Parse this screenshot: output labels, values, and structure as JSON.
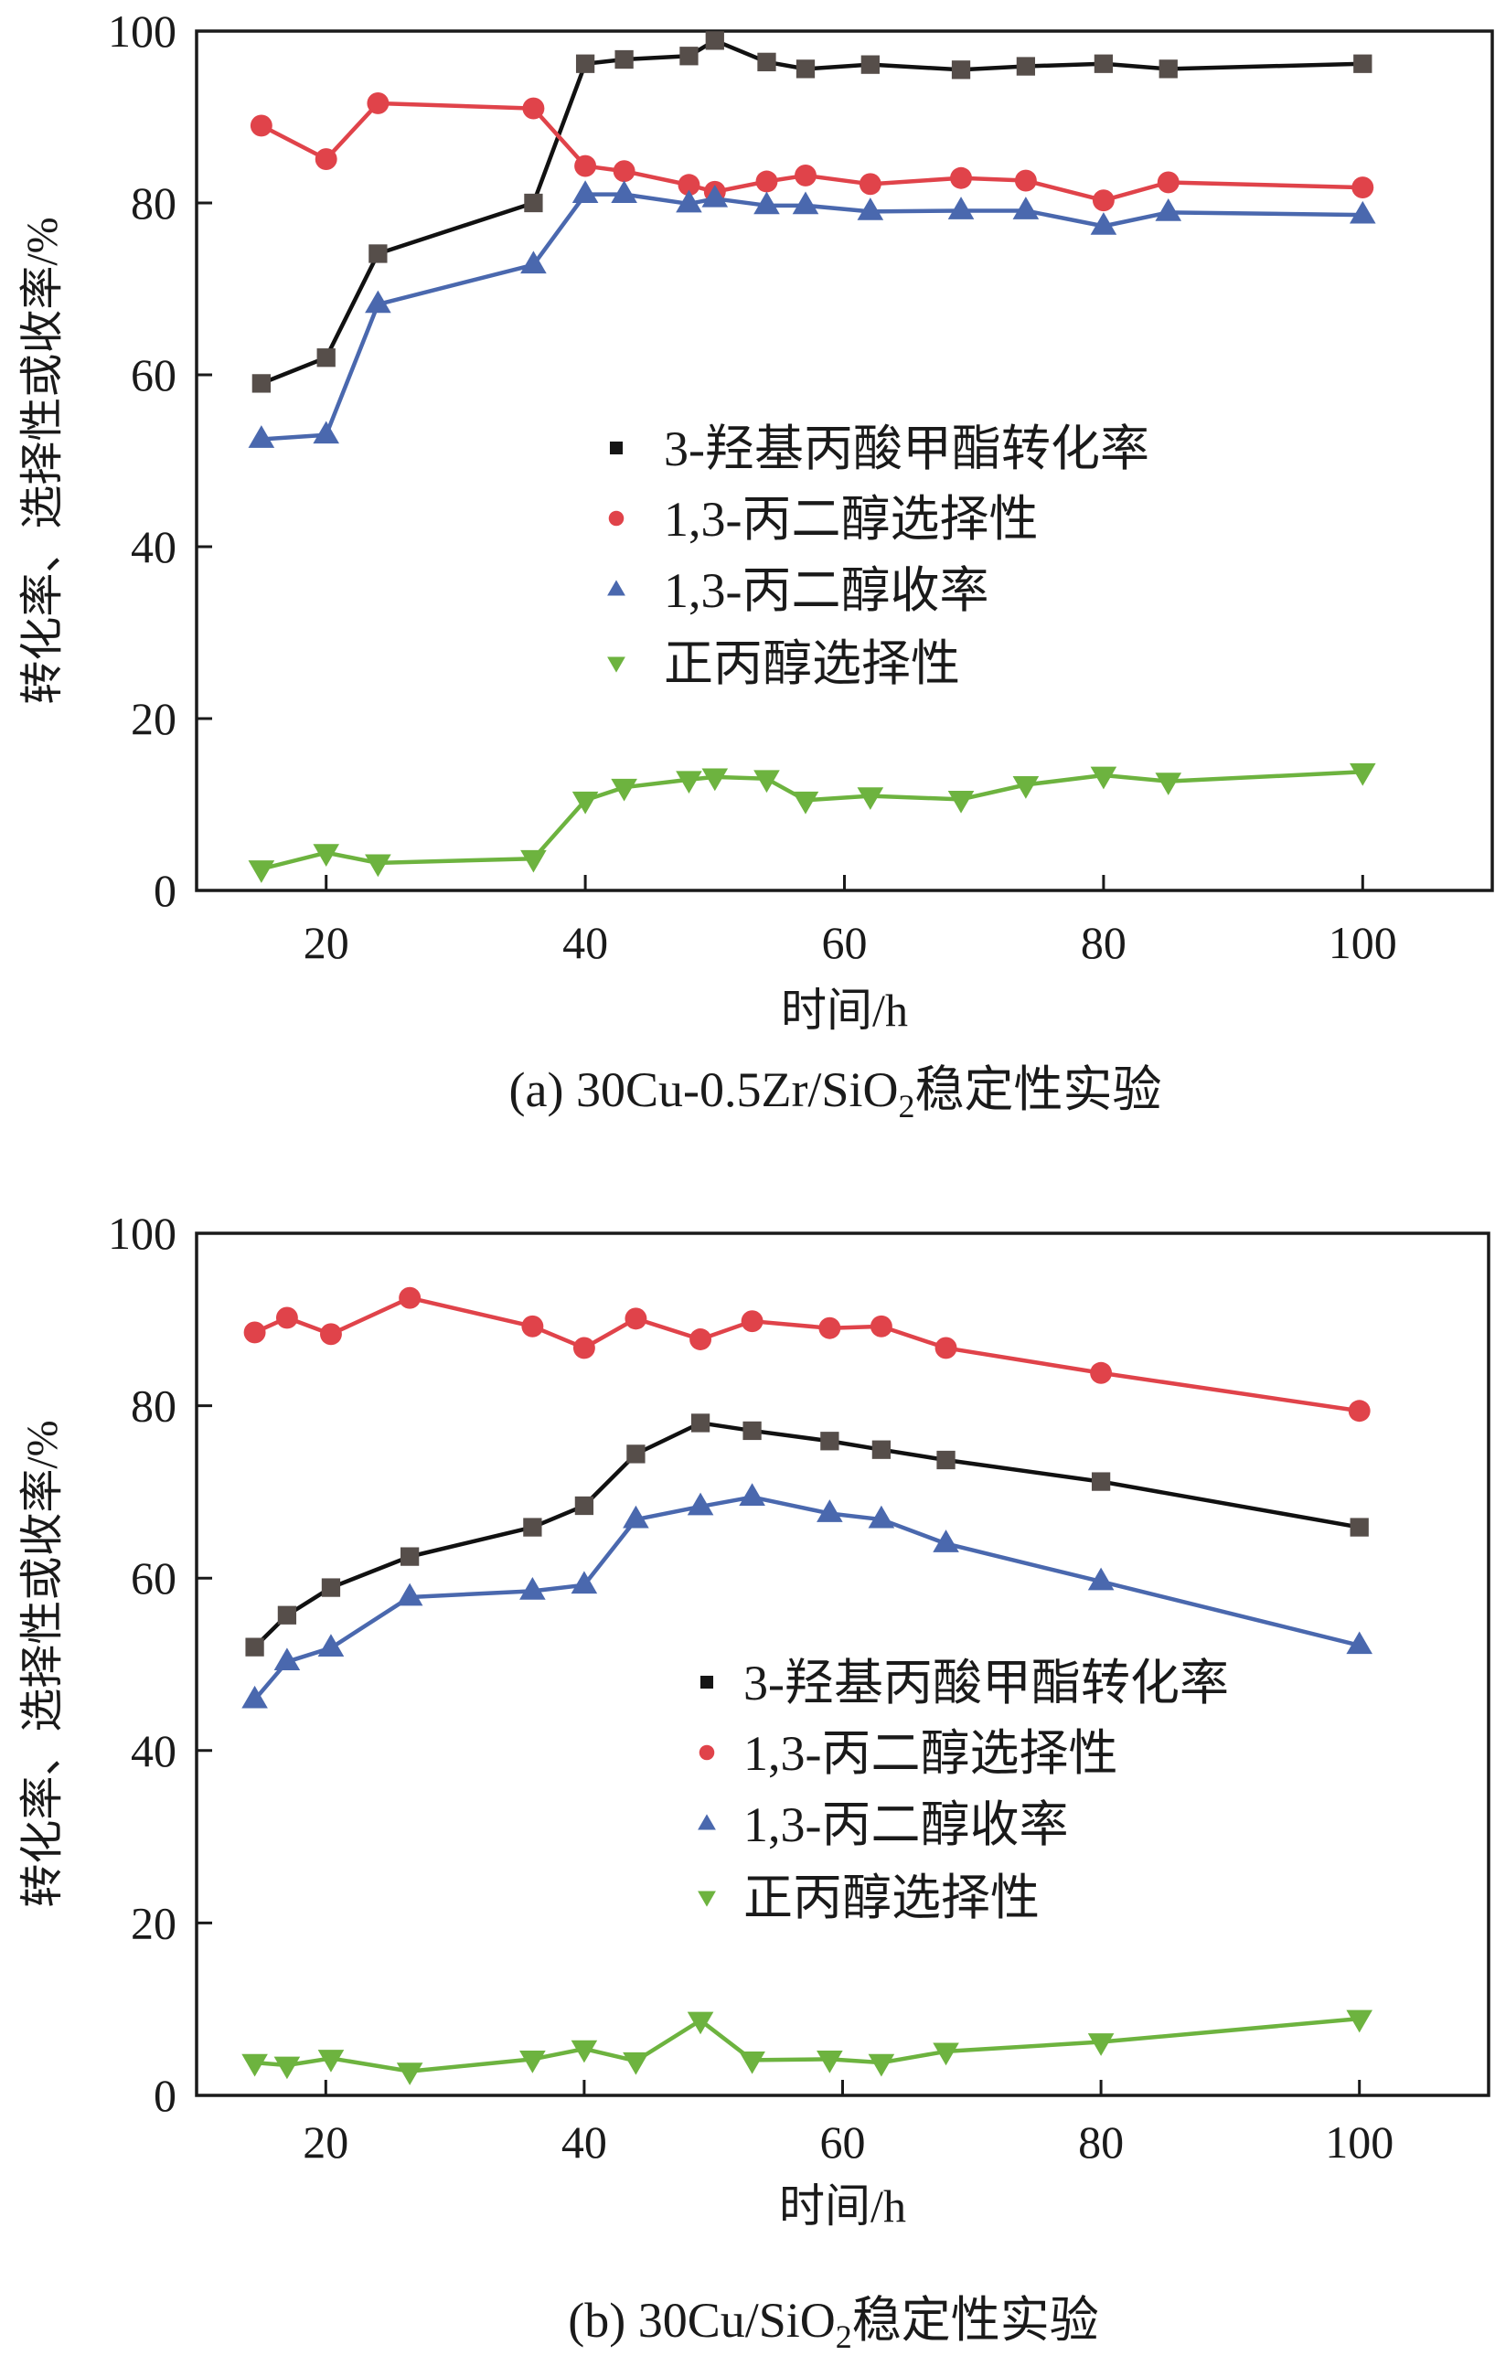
{
  "chart_data": [
    {
      "type": "line",
      "title": "",
      "caption": {
        "prefix": "(a) 30Cu-0.5Zr/SiO",
        "subscript": "2",
        "suffix": "稳定性实验"
      },
      "xlabel": "时间/h",
      "ylabel": "转化率、选择性或收率/%",
      "xlim": [
        10,
        110
      ],
      "ylim": [
        0,
        100
      ],
      "xticks": [
        20,
        40,
        60,
        80,
        100
      ],
      "yticks": [
        0,
        20,
        40,
        60,
        80,
        100
      ],
      "grid": false,
      "legend_position": "center",
      "series": [
        {
          "name": "3-羟基丙酸甲酯转化率",
          "marker": "square",
          "color": "#564e4a",
          "line_color": "#111111",
          "x": [
            15,
            20,
            24,
            36,
            40,
            43,
            48,
            50,
            54,
            57,
            62,
            69,
            74,
            80,
            85,
            100
          ],
          "y": [
            59.0,
            62.0,
            74.1,
            80.0,
            96.2,
            96.7,
            97.1,
            98.9,
            96.4,
            95.6,
            96.1,
            95.5,
            95.9,
            96.2,
            95.6,
            96.2
          ]
        },
        {
          "name": "1,3-丙二醇选择性",
          "marker": "circle",
          "color": "#e0434a",
          "line_color": "#e0434a",
          "x": [
            15,
            20,
            24,
            36,
            40,
            43,
            48,
            50,
            54,
            57,
            62,
            69,
            74,
            80,
            85,
            100
          ],
          "y": [
            89.0,
            85.1,
            91.6,
            91.0,
            84.3,
            83.7,
            82.1,
            81.3,
            82.5,
            83.2,
            82.2,
            82.9,
            82.6,
            80.3,
            82.4,
            81.8
          ]
        },
        {
          "name": "1,3-丙二醇收率",
          "marker": "triangle-up",
          "color": "#4a68ae",
          "line_color": "#4a68ae",
          "x": [
            15,
            20,
            24,
            36,
            40,
            43,
            48,
            50,
            54,
            57,
            62,
            69,
            74,
            80,
            85,
            100
          ],
          "y": [
            52.5,
            53.0,
            68.2,
            72.8,
            81.0,
            81.0,
            79.9,
            80.5,
            79.7,
            79.7,
            79.0,
            79.1,
            79.1,
            77.3,
            78.9,
            78.6
          ]
        },
        {
          "name": "正丙醇选择性",
          "marker": "triangle-down",
          "color": "#6db33f",
          "line_color": "#6db33f",
          "x": [
            15,
            20,
            24,
            36,
            40,
            43,
            48,
            50,
            54,
            57,
            62,
            69,
            74,
            80,
            85,
            100
          ],
          "y": [
            2.5,
            4.4,
            3.2,
            3.7,
            10.5,
            12.0,
            12.9,
            13.2,
            13.0,
            10.5,
            11.0,
            10.6,
            12.3,
            13.4,
            12.7,
            13.8
          ]
        }
      ]
    },
    {
      "type": "line",
      "title": "",
      "caption": {
        "prefix": "(b) 30Cu/SiO",
        "subscript": "2",
        "suffix": "稳定性实验"
      },
      "xlabel": "时间/h",
      "ylabel": "转化率、选择性或收率/%",
      "xlim": [
        10,
        110
      ],
      "ylim": [
        0,
        100
      ],
      "xticks": [
        20,
        40,
        60,
        80,
        100
      ],
      "yticks": [
        0,
        20,
        40,
        60,
        80,
        100
      ],
      "grid": false,
      "legend_position": "center-right",
      "series": [
        {
          "name": "3-羟基丙酸甲酯转化率",
          "marker": "square",
          "color": "#564e4a",
          "line_color": "#111111",
          "x": [
            14.5,
            17,
            20.4,
            26.5,
            36,
            40,
            44,
            49,
            53,
            59,
            63,
            68,
            80,
            100
          ],
          "y": [
            52.0,
            55.7,
            58.9,
            62.5,
            65.9,
            68.4,
            74.4,
            78.0,
            77.1,
            75.9,
            74.9,
            73.7,
            71.2,
            65.9
          ]
        },
        {
          "name": "1,3-丙二醇选择性",
          "marker": "circle",
          "color": "#e0434a",
          "line_color": "#e0434a",
          "x": [
            14.5,
            17,
            20.4,
            26.5,
            36,
            40,
            44,
            49,
            53,
            59,
            63,
            68,
            80,
            100
          ],
          "y": [
            88.5,
            90.2,
            88.3,
            92.5,
            89.2,
            86.7,
            90.1,
            87.7,
            89.8,
            89.0,
            89.2,
            86.7,
            83.8,
            79.4
          ]
        },
        {
          "name": "1,3-丙二醇收率",
          "marker": "triangle-up",
          "color": "#4a68ae",
          "line_color": "#4a68ae",
          "x": [
            14.5,
            17,
            20.4,
            26.5,
            36,
            40,
            44,
            49,
            53,
            59,
            63,
            68,
            80,
            100
          ],
          "y": [
            45.9,
            50.3,
            51.9,
            57.8,
            58.5,
            59.2,
            66.8,
            68.3,
            69.4,
            67.5,
            66.8,
            64.0,
            59.6,
            52.2
          ]
        },
        {
          "name": "正丙醇选择性",
          "marker": "triangle-down",
          "color": "#6db33f",
          "line_color": "#6db33f",
          "x": [
            14.5,
            17,
            20.4,
            26.5,
            36,
            40,
            44,
            49,
            53,
            59,
            63,
            68,
            80,
            100
          ],
          "y": [
            3.8,
            3.5,
            4.3,
            2.8,
            4.2,
            5.4,
            4.0,
            8.7,
            4.1,
            4.2,
            3.8,
            5.1,
            6.2,
            8.9
          ]
        }
      ]
    }
  ]
}
